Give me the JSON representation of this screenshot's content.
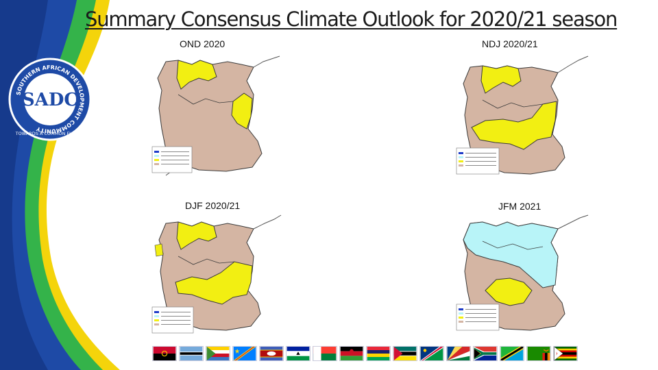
{
  "slide": {
    "title": "Summary Consensus Climate Outlook for 2020/21 season",
    "logo": {
      "ring_text": "SOUTHERN AFRICAN DEVELOPMENT COMMUNITY",
      "bottom_text": "TOWARDS A COMMON FUTURE",
      "monogram": "SADC"
    }
  },
  "maps": [
    {
      "label": "OND 2020"
    },
    {
      "label": "NDJ 2020/21"
    },
    {
      "label": "DJF 2020/21"
    },
    {
      "label": "JFM 2021"
    }
  ],
  "colors": {
    "normal_to_below": "#d4b5a3",
    "normal_to_above": "#f2ef12",
    "above_normal": "#b8f4f8",
    "water": "#ffffff",
    "border": "#3a3a3a",
    "swoosh_blue": "#1e4aa6",
    "swoosh_green": "#34b34a",
    "swoosh_yellow": "#f4d40b"
  },
  "flags": [
    {
      "name": "angola-flag"
    },
    {
      "name": "botswana-flag"
    },
    {
      "name": "comoros-flag"
    },
    {
      "name": "drc-flag"
    },
    {
      "name": "eswatini-flag"
    },
    {
      "name": "lesotho-flag"
    },
    {
      "name": "madagascar-flag"
    },
    {
      "name": "malawi-flag"
    },
    {
      "name": "mauritius-flag"
    },
    {
      "name": "mozambique-flag"
    },
    {
      "name": "namibia-flag"
    },
    {
      "name": "seychelles-flag"
    },
    {
      "name": "south-africa-flag"
    },
    {
      "name": "tanzania-flag"
    },
    {
      "name": "zambia-flag"
    },
    {
      "name": "zimbabwe-flag"
    }
  ]
}
